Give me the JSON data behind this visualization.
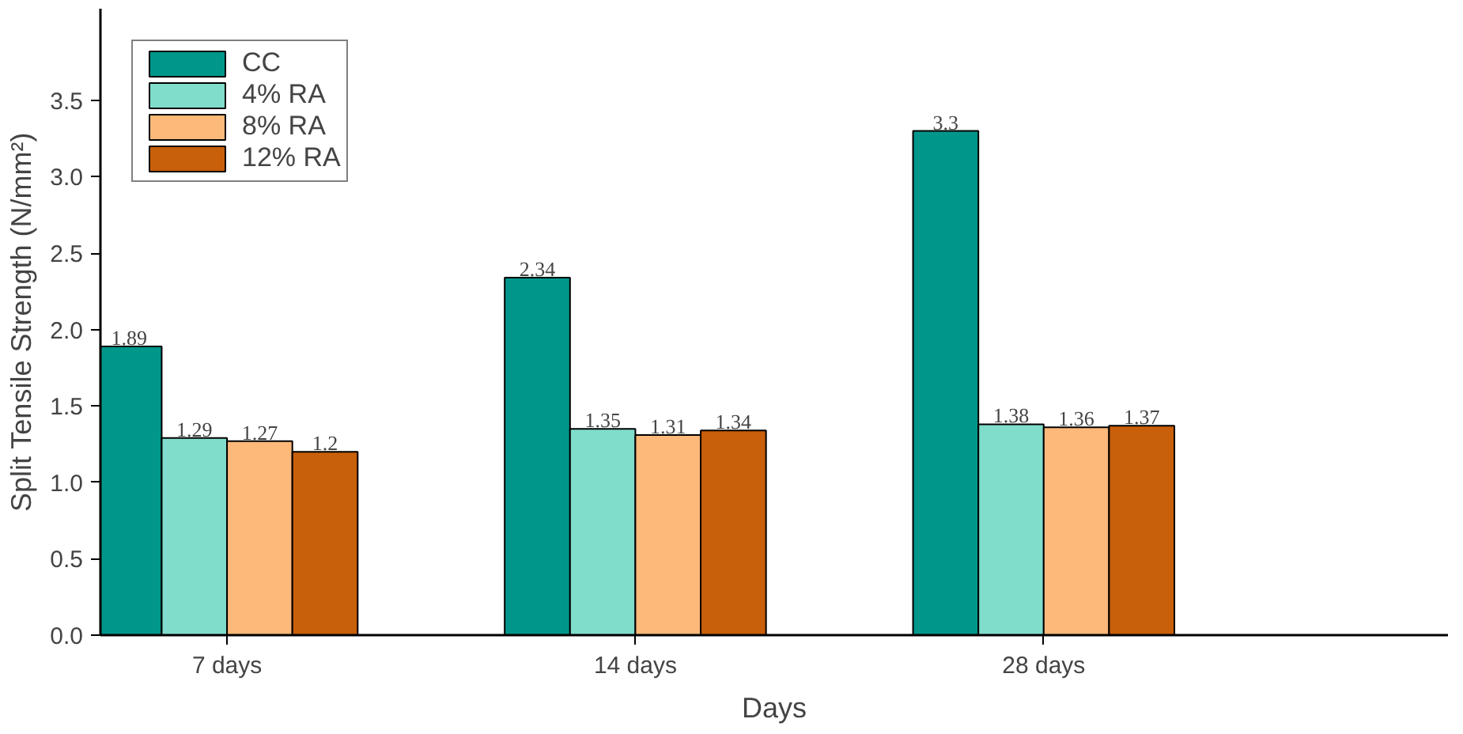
{
  "chart_data": {
    "type": "bar",
    "xlabel": "Days",
    "ylabel": "Split Tensile Strength (N/mm²)",
    "categories": [
      "7 days",
      "14 days",
      "28 days"
    ],
    "series": [
      {
        "name": "CC",
        "color": "#00978a",
        "values": [
          1.89,
          2.34,
          3.3
        ]
      },
      {
        "name": "4% RA",
        "color": "#80dccb",
        "values": [
          1.29,
          1.35,
          1.38
        ]
      },
      {
        "name": "8% RA",
        "color": "#fdb97a",
        "values": [
          1.27,
          1.31,
          1.36
        ]
      },
      {
        "name": "12% RA",
        "color": "#c85f0a",
        "values": [
          1.2,
          1.34,
          1.37
        ]
      }
    ],
    "ylim": [
      0,
      4.1
    ],
    "yticks": [
      {
        "value": 0,
        "label": "0.0"
      },
      {
        "value": 0.5,
        "label": "0.5"
      },
      {
        "value": 1,
        "label": "1.0"
      },
      {
        "value": 1.5,
        "label": "1.5"
      },
      {
        "value": 2,
        "label": "2.0"
      },
      {
        "value": 2.5,
        "label": "2.5"
      },
      {
        "value": 3,
        "label": "3.0"
      },
      {
        "value": 3.5,
        "label": "3.5"
      }
    ],
    "data_labels": true,
    "legend": "top left",
    "grid": false
  }
}
